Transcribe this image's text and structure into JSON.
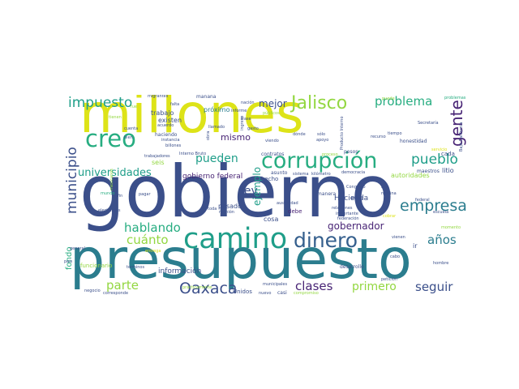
{
  "words": {
    "millones": "millones",
    "gobierno": "gobierno",
    "presupuesto": "presupuesto",
    "camino": "camino",
    "corrupcion": "corrupción",
    "dinero": "dinero",
    "jalisco": "Jalisco",
    "creo": "creo",
    "impuesto": "impuesto",
    "problema": "problema",
    "gente": "gente",
    "empresa": "empresa",
    "pueblo": "pueblo",
    "oaxaca": "Oaxaca",
    "municipio": "municipio",
    "universidades": "universidades",
    "hablando": "hablando",
    "cuanto": "cuánto",
    "parte": "parte",
    "clases": "clases",
    "primero": "primero",
    "seguir": "seguir",
    "anos": "años",
    "gobernador": "gobernador",
    "pueden": "pueden",
    "mejor": "mejor",
    "mismo": "mismo",
    "ley": "ley",
    "ejemplo": "ejemplo",
    "fondo": "fondo",
    "gobierno_federal": "gobierno federal",
    "hacienda": "Hacienda",
    "informacion": "información",
    "trabajo": "trabajo",
    "existen": "existen",
    "proximo": "próximo",
    "pasado": "pasado",
    "cosa": "cosa",
    "debe": "debe",
    "unidos": "Unidos",
    "seis": "seis",
    "autoridades": "autoridades",
    "maestros": "maestros",
    "litio": "litio",
    "cada": "cada",
    "funcionario": "funcionario",
    "asunto": "asunto",
    "pesos": "pesos",
    "contratos": "contratos",
    "hecho": "hecho",
    "manana": "mañana",
    "migrantes": "migrantes",
    "falta": "falta",
    "haciendo": "haciendo",
    "instancia": "instancia",
    "billones": "billones",
    "cuenta": "cuenta",
    "bien": "bien",
    "acuerdo": "acuerdo",
    "obra": "obra",
    "llamado": "llamado",
    "ingreso": "ingreso",
    "gasto": "gasto",
    "donde": "dónde",
    "solo": "sólo",
    "apoyo": "apoyo",
    "producto_interno": "Producto Interno",
    "recurso": "recurso",
    "tiempo": "tiempo",
    "honestidad": "honestidad",
    "secretaria": "Secretaría",
    "baja_california": "Baja California",
    "congreso": "Congreso",
    "alto": "alto",
    "nomina": "nómina",
    "federal": "federal",
    "escuela": "escuela",
    "democracia": "democracia",
    "relaciones": "relaciones",
    "importante": "importante",
    "federacion": "federación",
    "biden": "Biden",
    "vienen": "vienen",
    "ir": "ir",
    "cabo": "cabo",
    "desarrollo": "desarrollo",
    "hombre": "hombre",
    "peticion": "petición",
    "municipales": "municipales",
    "casi": "casi",
    "nuevo": "nuevo",
    "negocio": "negocio",
    "corresponde": "corresponde",
    "terminos": "términos",
    "general": "general",
    "pais": "país",
    "pagar": "pagar",
    "electorales": "electorales",
    "toda": "toda",
    "reunion": "reunión",
    "informe": "informe",
    "frase": "frase",
    "viendo": "viendo",
    "nacion": "nación",
    "manera": "manera",
    "sistema": "sistema",
    "kilometro": "kilómetro",
    "austeridad": "austeridad",
    "trabajadores": "trabajadores",
    "interno_bruto": "Interno Bruto",
    "fue": "fue",
    "publicos": "públicos",
    "problemas": "problemas",
    "mexicanos": "mexicanos",
    "practicamente": "prácticamente",
    "compromiso": "compromiso",
    "servicio": "servicio",
    "cobrar": "cobrar",
    "fin": "fin",
    "entrega": "entrega",
    "mundo": "mundo",
    "tienen": "tienen",
    "puede": "puede",
    "proceso": "proceso",
    "momento": "momento"
  },
  "colors": {
    "yellow": "#dde318",
    "navy": "#3b4f8a",
    "teal": "#2b7d8e",
    "green": "#27ad81",
    "purple": "#482475",
    "lime": "#93d741",
    "sea": "#1f9e89",
    "blue": "#355f8d"
  }
}
